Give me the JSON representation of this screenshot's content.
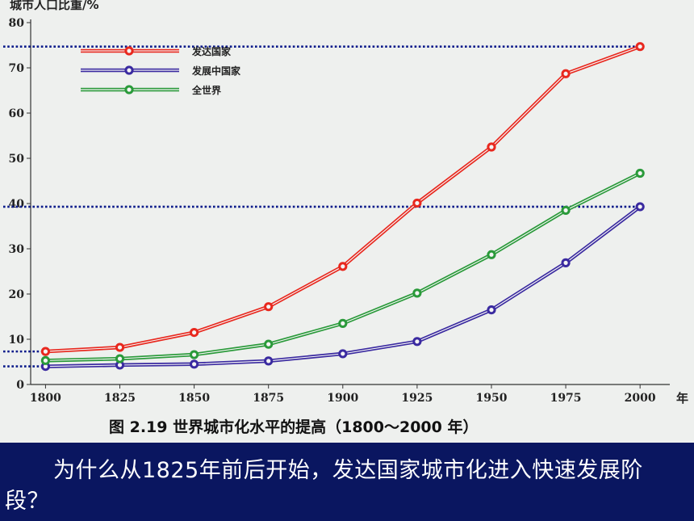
{
  "chart_data": {
    "type": "line",
    "ylabel": "城市人口比重/%",
    "xlabel": "年",
    "caption": "图 2.19   世界城市化水平的提高（1800～2000 年）",
    "x": [
      1800,
      1825,
      1850,
      1875,
      1900,
      1925,
      1950,
      1975,
      2000
    ],
    "xlim": [
      1795,
      2010
    ],
    "ylim": [
      0,
      80
    ],
    "yticks": [
      0,
      10,
      20,
      30,
      40,
      50,
      60,
      70,
      80
    ],
    "grid": false,
    "legend_position": "top-left",
    "series": [
      {
        "name": "发达国家",
        "color": "#e8281e",
        "values": [
          7.3,
          8.2,
          11.5,
          17.2,
          26.1,
          40.1,
          52.5,
          68.7,
          74.7
        ]
      },
      {
        "name": "发展中国家",
        "color": "#3a2aa0",
        "values": [
          4.0,
          4.3,
          4.5,
          5.2,
          6.8,
          9.5,
          16.5,
          26.9,
          39.3
        ]
      },
      {
        "name": "全世界",
        "color": "#2a9a3a",
        "values": [
          5.3,
          5.7,
          6.6,
          8.9,
          13.5,
          20.2,
          28.7,
          38.5,
          46.7
        ]
      }
    ],
    "reference_lines": [
      74.7,
      39.3,
      7.3,
      4.0
    ]
  },
  "question": {
    "text": "为什么从1825年前后开始，发达国家城市化进入快速发展阶段？"
  }
}
